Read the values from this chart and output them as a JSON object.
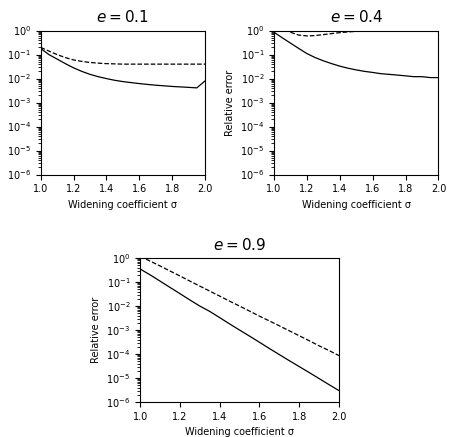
{
  "titles": [
    "e = 0.1",
    "e = 0.4",
    "e = 0.9"
  ],
  "xlabel": "Widening coefficient σ",
  "ylabel": "Relative error",
  "xlim": [
    1.0,
    2.0
  ],
  "ylim": [
    1e-06,
    1.0
  ],
  "xticks": [
    1.0,
    1.2,
    1.4,
    1.6,
    1.8,
    2.0
  ],
  "sigma": [
    1.0,
    1.05,
    1.1,
    1.15,
    1.2,
    1.25,
    1.3,
    1.35,
    1.4,
    1.45,
    1.5,
    1.55,
    1.6,
    1.65,
    1.7,
    1.75,
    1.8,
    1.85,
    1.9,
    1.95,
    2.0
  ],
  "e01_solid": [
    0.18,
    0.1,
    0.065,
    0.042,
    0.028,
    0.02,
    0.015,
    0.012,
    0.01,
    0.0085,
    0.0075,
    0.0068,
    0.0062,
    0.0057,
    0.0053,
    0.005,
    0.0047,
    0.0045,
    0.0043,
    0.0041,
    0.008
  ],
  "e01_dashed": [
    0.2,
    0.14,
    0.1,
    0.075,
    0.06,
    0.052,
    0.047,
    0.044,
    0.042,
    0.041,
    0.04,
    0.04,
    0.04,
    0.04,
    0.04,
    0.04,
    0.04,
    0.04,
    0.04,
    0.04,
    0.04
  ],
  "e04_solid": [
    0.85,
    0.5,
    0.3,
    0.18,
    0.11,
    0.075,
    0.055,
    0.042,
    0.033,
    0.027,
    0.023,
    0.02,
    0.018,
    0.016,
    0.015,
    0.014,
    0.013,
    0.012,
    0.012,
    0.011,
    0.011
  ],
  "e04_dashed": [
    2.5,
    1.4,
    0.85,
    0.65,
    0.6,
    0.62,
    0.68,
    0.75,
    0.82,
    0.88,
    0.93,
    0.96,
    0.99,
    1.0,
    1.01,
    1.0,
    0.99,
    0.97,
    0.96,
    0.94,
    0.92
  ],
  "e09_solid": [
    0.35,
    0.2,
    0.11,
    0.06,
    0.033,
    0.018,
    0.01,
    0.006,
    0.0033,
    0.0018,
    0.001,
    0.00056,
    0.00031,
    0.00017,
    9.5e-05,
    5.3e-05,
    3e-05,
    1.7e-05,
    9.5e-06,
    5.3e-06,
    3e-06
  ],
  "e09_dashed": [
    1.2,
    0.75,
    0.47,
    0.29,
    0.18,
    0.11,
    0.068,
    0.042,
    0.026,
    0.016,
    0.01,
    0.0062,
    0.0038,
    0.0024,
    0.0015,
    0.00093,
    0.00058,
    0.00036,
    0.00022,
    0.00014,
    8.6e-05
  ],
  "line_color": "#000000",
  "bg_color": "#ffffff",
  "title_fontsize": 11,
  "label_fontsize": 7,
  "tick_fontsize": 7
}
